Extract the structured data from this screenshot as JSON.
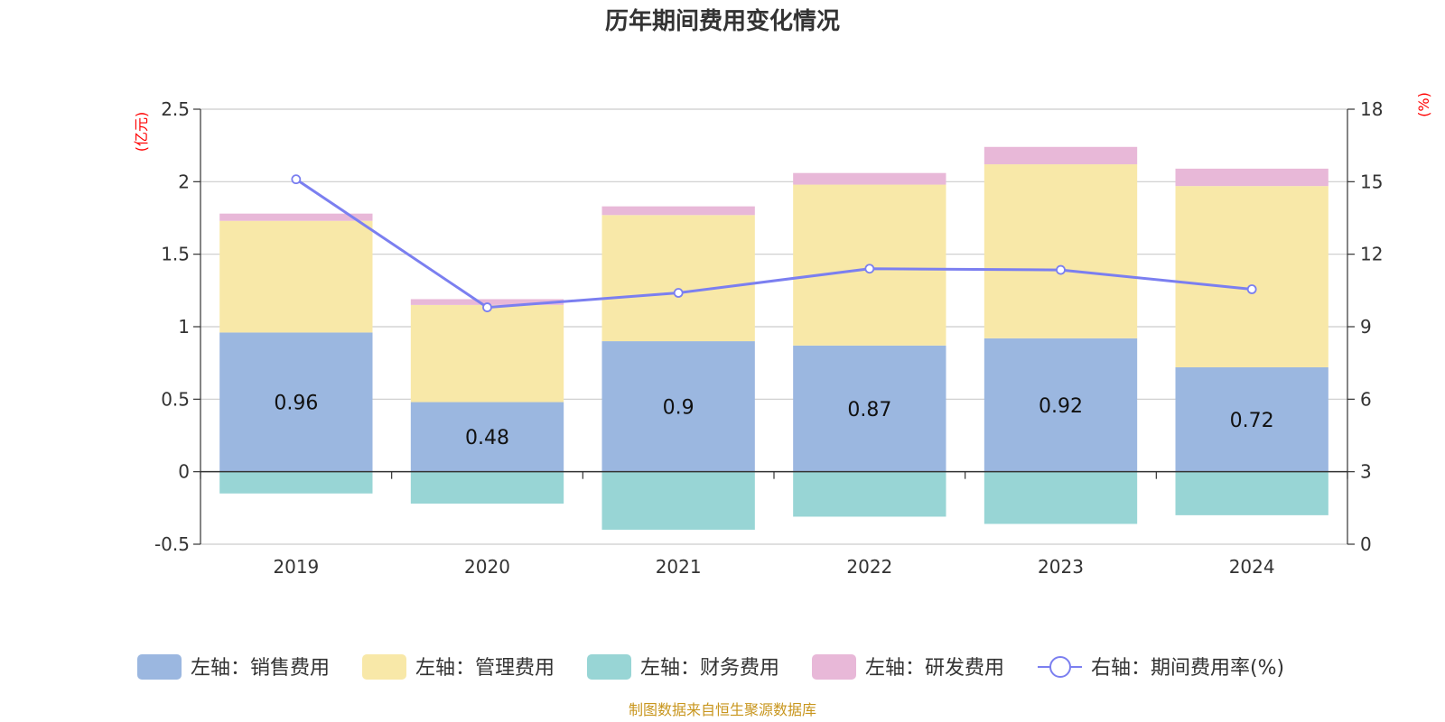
{
  "chart_data": {
    "type": "bar",
    "stacked": true,
    "title": "历年期间费用变化情况",
    "categories": [
      "2019",
      "2020",
      "2021",
      "2022",
      "2023",
      "2024"
    ],
    "left_axis": {
      "unit": "(亿元)",
      "ylim": [
        -0.5,
        2.5
      ],
      "ticks": [
        2.5,
        2,
        1.5,
        1,
        0.5,
        0,
        -0.5
      ],
      "tick_labels": [
        "2.5",
        "2",
        "1.5",
        "1",
        "0.5",
        "0",
        "-0.5"
      ]
    },
    "right_axis": {
      "unit": "(%)",
      "ylim": [
        0,
        18
      ],
      "ticks": [
        18,
        15,
        12,
        9,
        6,
        3,
        0
      ],
      "tick_labels": [
        "18",
        "15",
        "12",
        "9",
        "6",
        "3",
        "0"
      ]
    },
    "series": [
      {
        "name": "左轴：销售费用",
        "axis": "left",
        "kind": "bar",
        "color": "#9bb7e0",
        "values": [
          0.96,
          0.48,
          0.9,
          0.87,
          0.92,
          0.72
        ],
        "labels": [
          "0.96",
          "0.48",
          "0.9",
          "0.87",
          "0.92",
          "0.72"
        ]
      },
      {
        "name": "左轴：管理费用",
        "axis": "left",
        "kind": "bar",
        "color": "#f8e8a8",
        "values": [
          0.77,
          0.67,
          0.87,
          1.11,
          1.2,
          1.25
        ]
      },
      {
        "name": "左轴：财务费用",
        "axis": "left",
        "kind": "bar",
        "color": "#98d5d5",
        "values": [
          -0.15,
          -0.22,
          -0.4,
          -0.31,
          -0.36,
          -0.3
        ]
      },
      {
        "name": "左轴：研发费用",
        "axis": "left",
        "kind": "bar",
        "color": "#e8b8d8",
        "values": [
          0.05,
          0.04,
          0.06,
          0.08,
          0.12,
          0.12
        ]
      },
      {
        "name": "右轴：期间费用率(%)",
        "axis": "right",
        "kind": "line",
        "color": "#7b7ff0",
        "values": [
          15.1,
          9.8,
          10.4,
          11.4,
          11.35,
          10.55
        ]
      }
    ],
    "legend_position": "bottom",
    "grid": true
  },
  "footer": {
    "source": "制图数据来自恒生聚源数据库"
  }
}
